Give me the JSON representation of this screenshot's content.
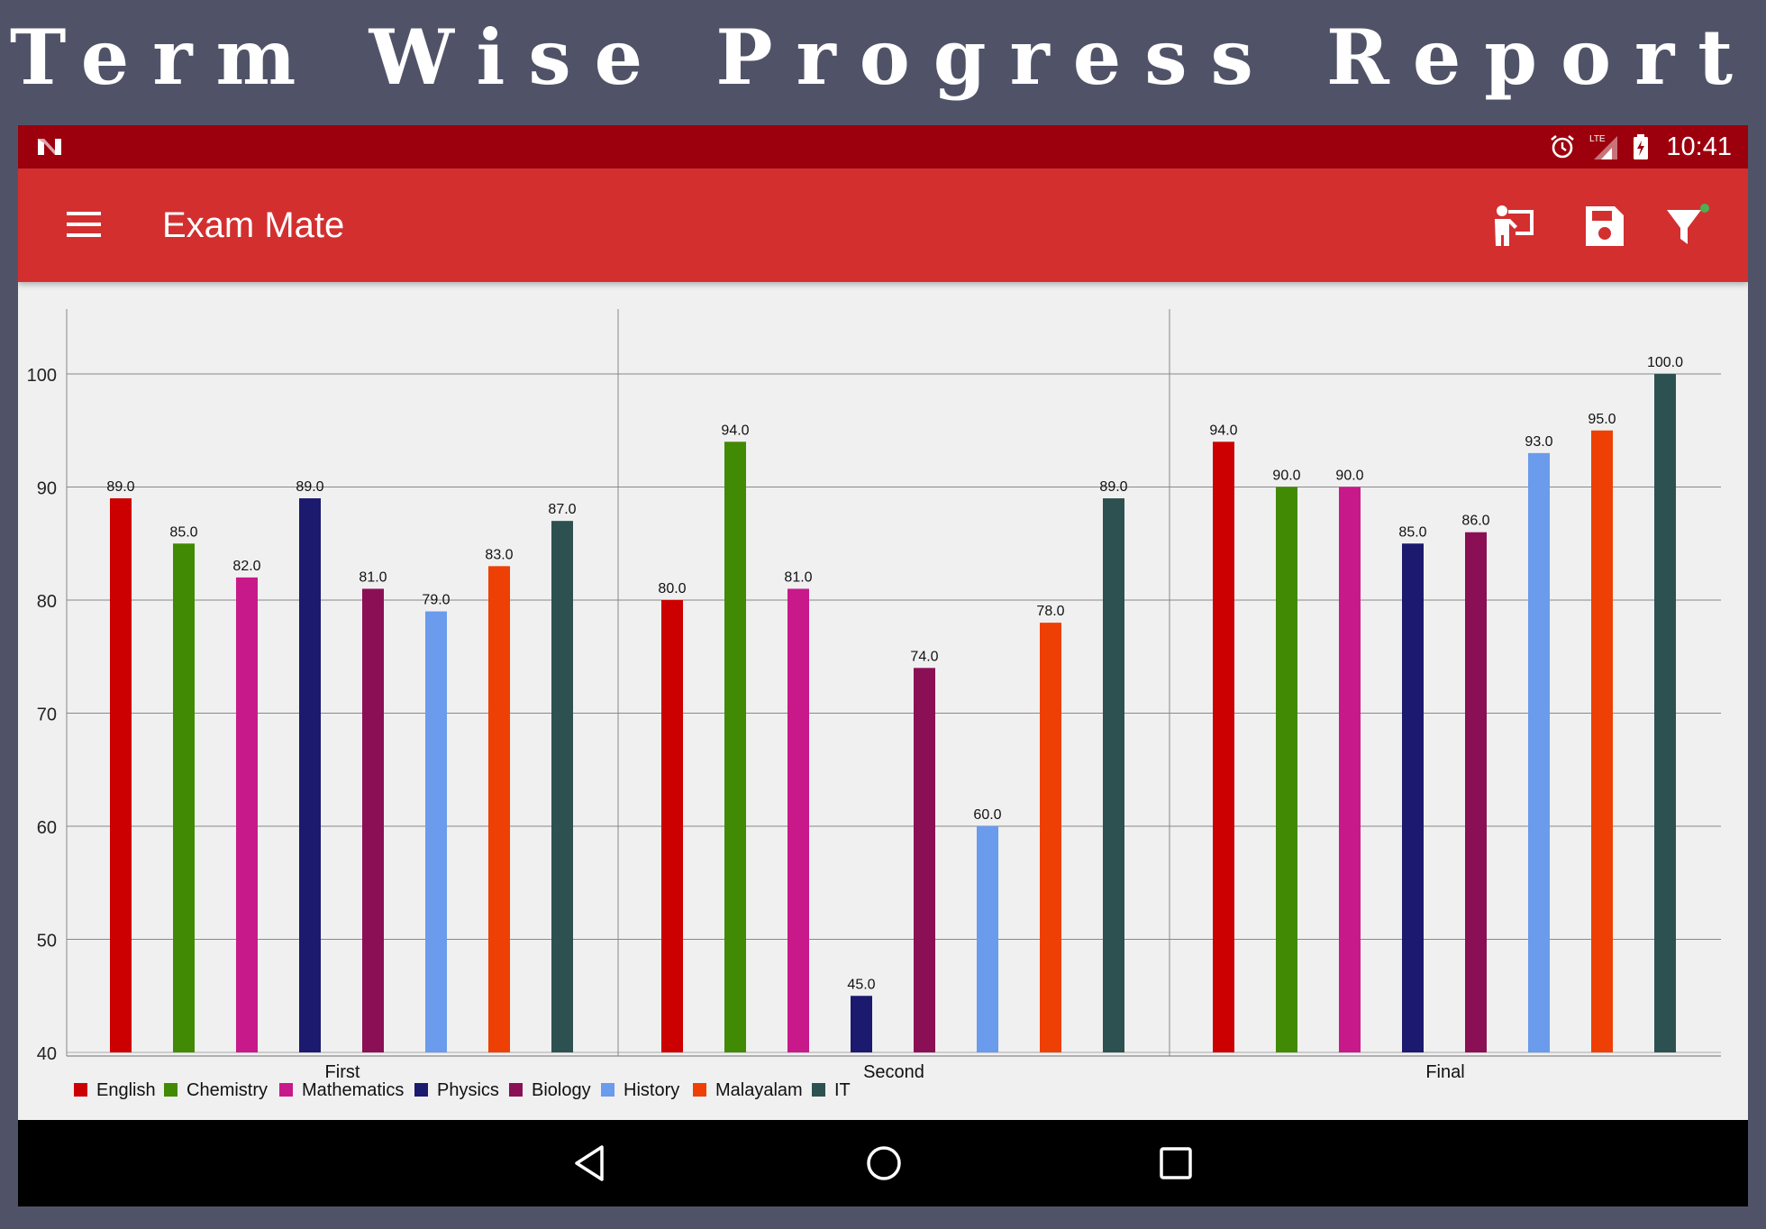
{
  "banner": {
    "title": "Term Wise Progress Report"
  },
  "status_bar": {
    "time": "10:41",
    "network": "LTE"
  },
  "app_bar": {
    "title": "Exam Mate",
    "actions": [
      "teacher-icon",
      "save-icon",
      "filter-icon"
    ]
  },
  "colors": {
    "banner_bg": "#505368",
    "status_bar": "#9c000d",
    "app_bar": "#d32f2f",
    "chart_bg": "#f0f0f0",
    "filter_dot": "#4caf50"
  },
  "chart_data": {
    "type": "bar",
    "categories": [
      "First",
      "Second",
      "Final"
    ],
    "ylim": [
      40,
      105
    ],
    "yticks": [
      "40",
      "50",
      "60",
      "70",
      "80",
      "90",
      "100"
    ],
    "grid": true,
    "legend_position": "bottom-left",
    "series": [
      {
        "name": "English",
        "color": "#cc0000",
        "values": [
          89.0,
          80.0,
          94.0
        ],
        "labels": [
          "89.0",
          "80.0",
          "94.0"
        ]
      },
      {
        "name": "Chemistry",
        "color": "#418a04",
        "values": [
          85.0,
          94.0,
          90.0
        ],
        "labels": [
          "85.0",
          "94.0",
          "90.0"
        ]
      },
      {
        "name": "Mathematics",
        "color": "#c8198b",
        "values": [
          82.0,
          81.0,
          90.0
        ],
        "labels": [
          "82.0",
          "81.0",
          "90.0"
        ]
      },
      {
        "name": "Physics",
        "color": "#1b1a6e",
        "values": [
          89.0,
          45.0,
          85.0
        ],
        "labels": [
          "89.0",
          "45.0",
          "85.0"
        ]
      },
      {
        "name": "Biology",
        "color": "#8b0f55",
        "values": [
          81.0,
          74.0,
          86.0
        ],
        "labels": [
          "81.0",
          "74.0",
          "86.0"
        ]
      },
      {
        "name": "History",
        "color": "#6a9bec",
        "values": [
          79.0,
          60.0,
          93.0
        ],
        "labels": [
          "79.0",
          "60.0",
          "93.0"
        ]
      },
      {
        "name": "Malayalam",
        "color": "#ee4005",
        "values": [
          83.0,
          78.0,
          95.0
        ],
        "labels": [
          "83.0",
          "78.0",
          "95.0"
        ]
      },
      {
        "name": "IT",
        "color": "#2d5150",
        "values": [
          87.0,
          89.0,
          100.0
        ],
        "labels": [
          "87.0",
          "89.0",
          "100.0"
        ]
      }
    ]
  }
}
